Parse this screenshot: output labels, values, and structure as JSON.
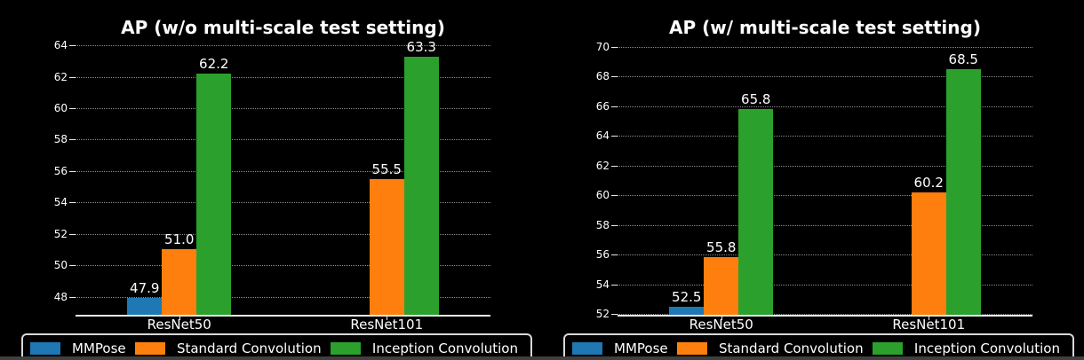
{
  "colors": {
    "background": "#000000",
    "grid": "#8c8c8c",
    "axis": "#e8e8e8",
    "text": "#ffffff",
    "legend_border": "#d9d9d9",
    "bottom_edge": "#3f3f3f"
  },
  "chart_data": [
    {
      "type": "bar",
      "title": "AP (w/o multi-scale test setting)",
      "categories": [
        "ResNet50",
        "ResNet101"
      ],
      "series": [
        {
          "name": "MMPose",
          "color": "#1f77b4",
          "values": [
            47.9,
            null
          ]
        },
        {
          "name": "Standard Convolution",
          "color": "#ff7f0e",
          "values": [
            51.0,
            55.5
          ]
        },
        {
          "name": "Inception Convolution",
          "color": "#2ca02c",
          "values": [
            62.2,
            63.3
          ]
        }
      ],
      "yticks": [
        64,
        62,
        60,
        58,
        56,
        54,
        52,
        50,
        48
      ],
      "ylim": [
        46.85,
        64.35
      ],
      "xlabel": "",
      "ylabel": "",
      "grid": "horizontal-dotted",
      "legend_position": "bottom"
    },
    {
      "type": "bar",
      "title": "AP (w/ multi-scale test setting)",
      "categories": [
        "ResNet50",
        "ResNet101"
      ],
      "series": [
        {
          "name": "MMPose",
          "color": "#1f77b4",
          "values": [
            52.5,
            null
          ]
        },
        {
          "name": "Standard Convolution",
          "color": "#ff7f0e",
          "values": [
            55.8,
            60.2
          ]
        },
        {
          "name": "Inception Convolution",
          "color": "#2ca02c",
          "values": [
            65.8,
            68.5
          ]
        }
      ],
      "yticks": [
        70,
        68,
        66,
        64,
        62,
        60,
        58,
        56,
        54,
        52
      ],
      "ylim": [
        51.94,
        70.48
      ],
      "xlabel": "",
      "ylabel": "",
      "grid": "horizontal-dotted",
      "legend_position": "bottom"
    }
  ]
}
